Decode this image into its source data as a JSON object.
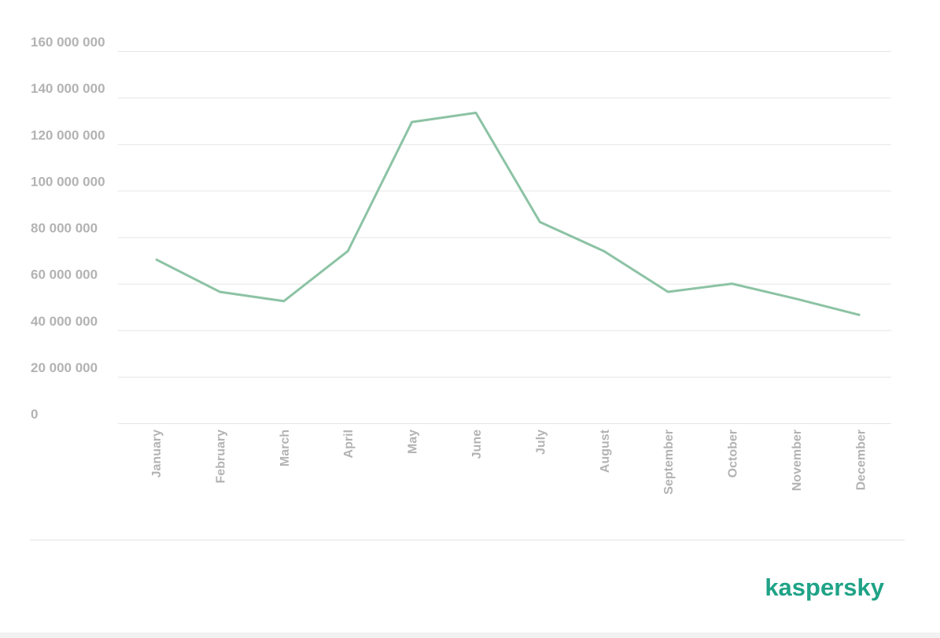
{
  "chart_data": {
    "type": "line",
    "categories": [
      "January",
      "February",
      "March",
      "April",
      "May",
      "June",
      "July",
      "August",
      "September",
      "October",
      "November",
      "December"
    ],
    "series": [
      {
        "color": "#8cc3a4",
        "values": [
          70500000,
          56500000,
          52500000,
          74000000,
          129500000,
          133500000,
          86500000,
          74000000,
          56500000,
          60000000,
          53500000,
          46500000
        ]
      }
    ],
    "ylim": [
      0,
      160000000
    ],
    "yticks": [
      0,
      {
        "value": 20000000,
        "label": "20 000 000"
      },
      {
        "value": 40000000,
        "label": "40 000 000"
      },
      {
        "value": 60000000,
        "label": "60 000 000"
      },
      {
        "value": 80000000,
        "label": "80 000 000"
      },
      {
        "value": 100000000,
        "label": "100 000 000"
      },
      {
        "value": 120000000,
        "label": "120 000 000"
      },
      {
        "value": 140000000,
        "label": "140 000 000"
      },
      {
        "value": 160000000,
        "label": "160 000 000"
      }
    ],
    "grid": true
  },
  "brand": "kaspersky"
}
